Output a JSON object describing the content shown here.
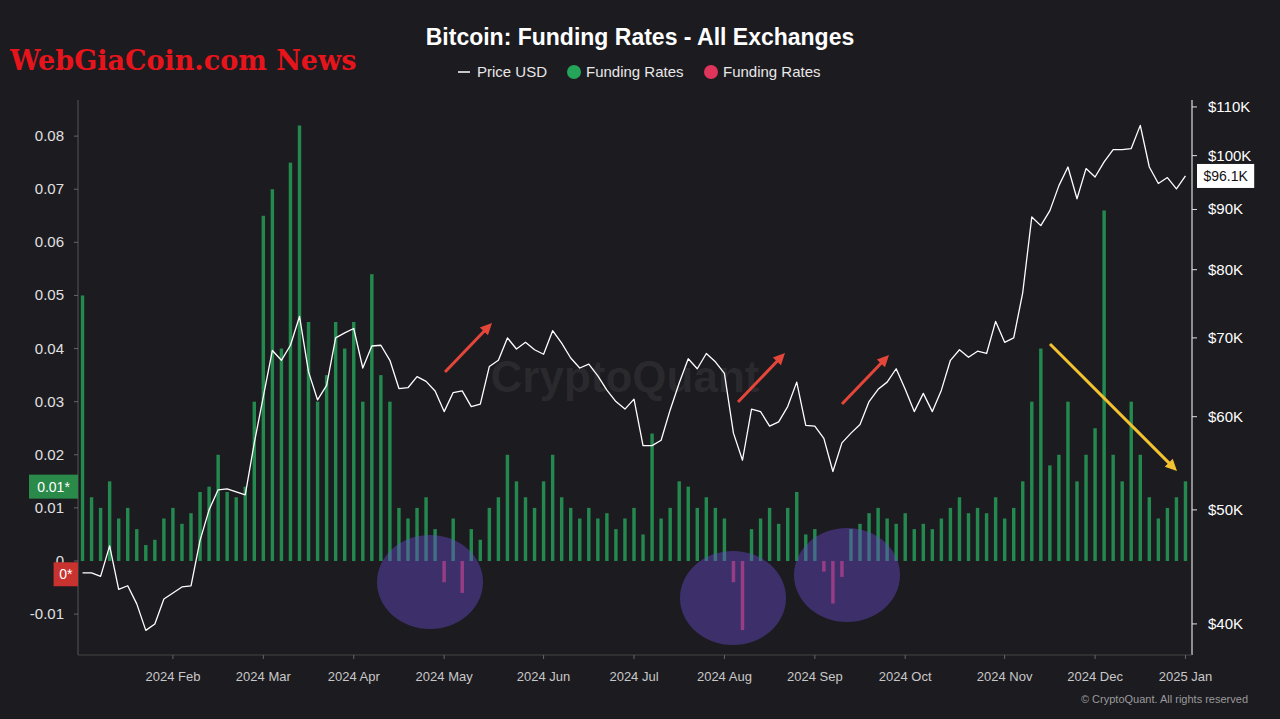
{
  "chart_data": {
    "type": "bar",
    "title": "Bitcoin: Funding Rates - All Exchanges",
    "brand": "WebGiaCoin.com News",
    "watermark": "CryptoQuant",
    "copyright": "© CryptoQuant. All rights reserved",
    "legend": "top",
    "grid": false,
    "log": "y2",
    "categories": [
      null,
      null,
      null,
      null,
      null,
      null,
      null,
      null,
      null,
      null,
      "2024 Feb",
      null,
      null,
      null,
      null,
      null,
      null,
      null,
      null,
      null,
      "2024 Mar",
      null,
      null,
      null,
      null,
      null,
      null,
      null,
      null,
      null,
      "2024 Apr",
      null,
      null,
      null,
      null,
      null,
      null,
      null,
      null,
      null,
      "2024 May",
      null,
      null,
      null,
      null,
      null,
      null,
      null,
      null,
      null,
      null,
      "2024 Jun",
      null,
      null,
      null,
      null,
      null,
      null,
      null,
      null,
      null,
      "2024 Jul",
      null,
      null,
      null,
      null,
      null,
      null,
      null,
      null,
      null,
      "2024 Aug",
      null,
      null,
      null,
      null,
      null,
      null,
      null,
      null,
      null,
      "2024 Sep",
      null,
      null,
      null,
      null,
      null,
      null,
      null,
      null,
      null,
      "2024 Oct",
      null,
      null,
      null,
      null,
      null,
      null,
      null,
      null,
      null,
      null,
      "2024 Nov",
      null,
      null,
      null,
      null,
      null,
      null,
      null,
      null,
      null,
      "2024 Dec",
      null,
      null,
      null,
      null,
      null,
      null,
      null,
      null,
      null,
      "2025 Jan"
    ],
    "series": [
      {
        "name": "Price USD",
        "type": "line",
        "axis": "y2",
        "color": "#ffffff",
        "values": [
          44200,
          44200,
          43900,
          46600,
          42800,
          43100,
          41600,
          39500,
          40000,
          42000,
          42500,
          43000,
          43100,
          47100,
          50000,
          52000,
          52100,
          51800,
          51500,
          57000,
          62400,
          68300,
          67000,
          69000,
          73000,
          65500,
          62000,
          63800,
          70000,
          70700,
          71300,
          66000,
          68900,
          69000,
          67000,
          63400,
          63500,
          64900,
          64300,
          63100,
          60600,
          62900,
          63100,
          61200,
          61500,
          66200,
          67000,
          70000,
          68500,
          69400,
          68400,
          67800,
          71000,
          69300,
          67300,
          66000,
          66500,
          65000,
          63200,
          61800,
          60900,
          62100,
          56700,
          56700,
          57300,
          60800,
          64100,
          67200,
          65900,
          67900,
          66800,
          65300,
          58100,
          55100,
          60900,
          60600,
          58900,
          59400,
          61200,
          64200,
          59000,
          58900,
          57500,
          53900,
          57000,
          58100,
          59100,
          61800,
          63300,
          64200,
          65900,
          63300,
          60600,
          62800,
          60600,
          63200,
          67000,
          68400,
          67400,
          68200,
          67900,
          72300,
          69400,
          70000,
          76500,
          88700,
          87200,
          89800,
          94300,
          97800,
          91900,
          97500,
          95900,
          98800,
          101200,
          101200,
          101400,
          106100,
          97800,
          94700,
          95800,
          93700,
          96100
        ]
      },
      {
        "name": "Funding Rates",
        "type": "bar",
        "color": "#25a55a",
        "values": [
          0.05,
          0.012,
          0.01,
          0.015,
          0.008,
          0.01,
          0.006,
          0.003,
          0.004,
          0.008,
          0.01,
          0.007,
          0.009,
          0.013,
          0.014,
          0.02,
          0.013,
          0.012,
          0.014,
          0.03,
          0.065,
          0.07,
          0.04,
          0.075,
          0.082,
          0.045,
          0.03,
          0.035,
          0.045,
          0.04,
          0.045,
          0.03,
          0.054,
          0.035,
          0.03,
          0.01,
          0.008,
          0.01,
          0.012,
          0.006,
          null,
          0.008,
          null,
          0.006,
          0.004,
          0.01,
          0.012,
          0.02,
          0.015,
          0.012,
          0.01,
          0.015,
          0.02,
          0.012,
          0.01,
          0.008,
          0.01,
          0.008,
          0.009,
          0.006,
          0.008,
          0.01,
          0.005,
          0.024,
          0.008,
          0.01,
          0.015,
          0.014,
          0.01,
          0.012,
          0.01,
          0.008,
          null,
          null,
          0.006,
          0.008,
          0.01,
          0.007,
          0.01,
          0.013,
          0.005,
          0.006,
          null,
          null,
          null,
          0.006,
          0.007,
          0.009,
          0.01,
          0.008,
          0.007,
          0.009,
          0.006,
          0.007,
          0.006,
          0.008,
          0.01,
          0.012,
          0.009,
          0.01,
          0.009,
          0.012,
          0.008,
          0.01,
          0.015,
          0.03,
          0.04,
          0.018,
          0.02,
          0.03,
          0.015,
          0.02,
          0.025,
          0.066,
          0.02,
          0.015,
          0.03,
          0.02,
          0.012,
          0.008,
          0.01,
          0.012,
          0.015
        ]
      },
      {
        "name": "Funding Rates",
        "type": "bar",
        "color": "#e0355a",
        "values": [
          null,
          null,
          null,
          null,
          null,
          null,
          null,
          null,
          null,
          null,
          null,
          null,
          null,
          null,
          null,
          null,
          null,
          null,
          null,
          null,
          null,
          null,
          null,
          null,
          null,
          null,
          null,
          null,
          null,
          null,
          null,
          null,
          null,
          null,
          null,
          null,
          null,
          null,
          null,
          null,
          -0.004,
          null,
          -0.006,
          null,
          null,
          null,
          null,
          null,
          null,
          null,
          null,
          null,
          null,
          null,
          null,
          null,
          null,
          null,
          null,
          null,
          null,
          null,
          null,
          null,
          null,
          null,
          null,
          null,
          null,
          null,
          null,
          null,
          -0.004,
          -0.013,
          null,
          null,
          null,
          null,
          null,
          null,
          null,
          null,
          -0.002,
          -0.008,
          -0.003,
          null,
          null,
          null,
          null,
          null,
          null,
          null,
          null,
          null,
          null,
          null,
          null,
          null,
          null,
          null,
          null,
          null,
          null,
          null,
          null,
          null,
          null,
          null,
          null,
          null,
          null,
          null,
          null,
          null,
          null,
          null,
          null,
          null,
          null,
          null,
          null,
          null,
          null
        ]
      }
    ],
    "ylim": [
      -0.0177,
      0.0868
    ],
    "yticks": [
      -0.01,
      0,
      0.01,
      0.02,
      0.03,
      0.04,
      0.05,
      0.06,
      0.07,
      0.08
    ],
    "y2lim": [
      37640,
      111500
    ],
    "y2ticks": [
      {
        "value": 40000,
        "label": "$40K"
      },
      {
        "value": 50000,
        "label": "$50K"
      },
      {
        "value": 60000,
        "label": "$60K"
      },
      {
        "value": 70000,
        "label": "$70K"
      },
      {
        "value": 80000,
        "label": "$80K"
      },
      {
        "value": 90000,
        "label": "$90K"
      },
      {
        "value": 100000,
        "label": "$100K"
      },
      {
        "value": 110000,
        "label": "$110K"
      }
    ],
    "annotations": [
      {
        "text": "0.01*",
        "value": 0.014,
        "axis": "y",
        "color": "#2a8a4a"
      },
      {
        "text": "0*",
        "value": -0.0025,
        "axis": "y",
        "color": "#c8322f"
      },
      {
        "text": "$96.1K",
        "value": 96100,
        "axis": "y2",
        "color": "#ffffff"
      }
    ]
  }
}
